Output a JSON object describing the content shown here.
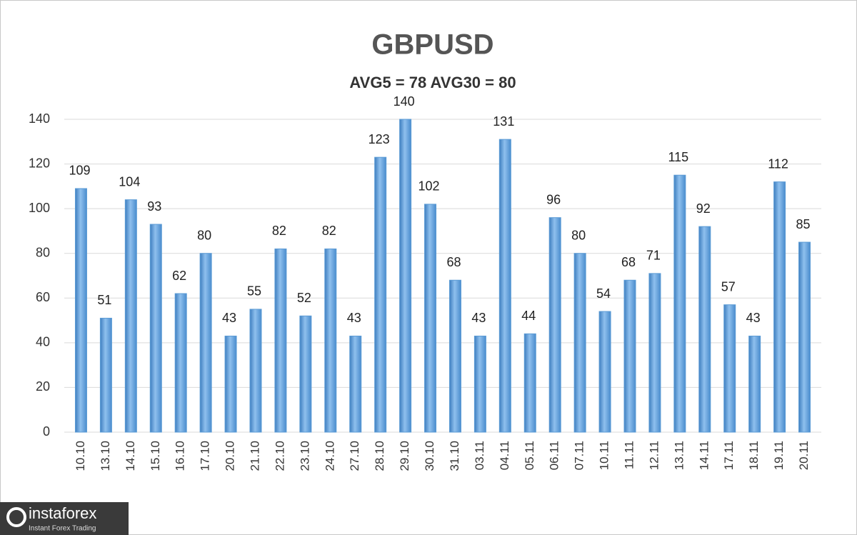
{
  "chart_data": {
    "type": "bar",
    "title": "GBPUSD",
    "subtitle": "AVG5 = 78 AVG30 = 80",
    "categories": [
      "10.10",
      "13.10",
      "14.10",
      "15.10",
      "16.10",
      "17.10",
      "20.10",
      "21.10",
      "22.10",
      "23.10",
      "24.10",
      "27.10",
      "28.10",
      "29.10",
      "30.10",
      "31.10",
      "03.11",
      "04.11",
      "05.11",
      "06.11",
      "07.11",
      "10.11",
      "11.11",
      "12.11",
      "13.11",
      "14.11",
      "17.11",
      "18.11",
      "19.11",
      "20.11"
    ],
    "values": [
      109,
      51,
      104,
      93,
      62,
      80,
      43,
      55,
      82,
      52,
      82,
      43,
      123,
      140,
      102,
      68,
      43,
      131,
      44,
      96,
      80,
      54,
      68,
      71,
      115,
      92,
      57,
      43,
      112,
      85
    ],
    "color": "#5b9bd5",
    "ylim": [
      0,
      140
    ],
    "yticks": [
      0,
      20,
      40,
      60,
      80,
      100,
      120,
      140
    ],
    "grid": true
  },
  "watermark": {
    "brand": "instaforex",
    "tagline": "Instant Forex Trading"
  }
}
